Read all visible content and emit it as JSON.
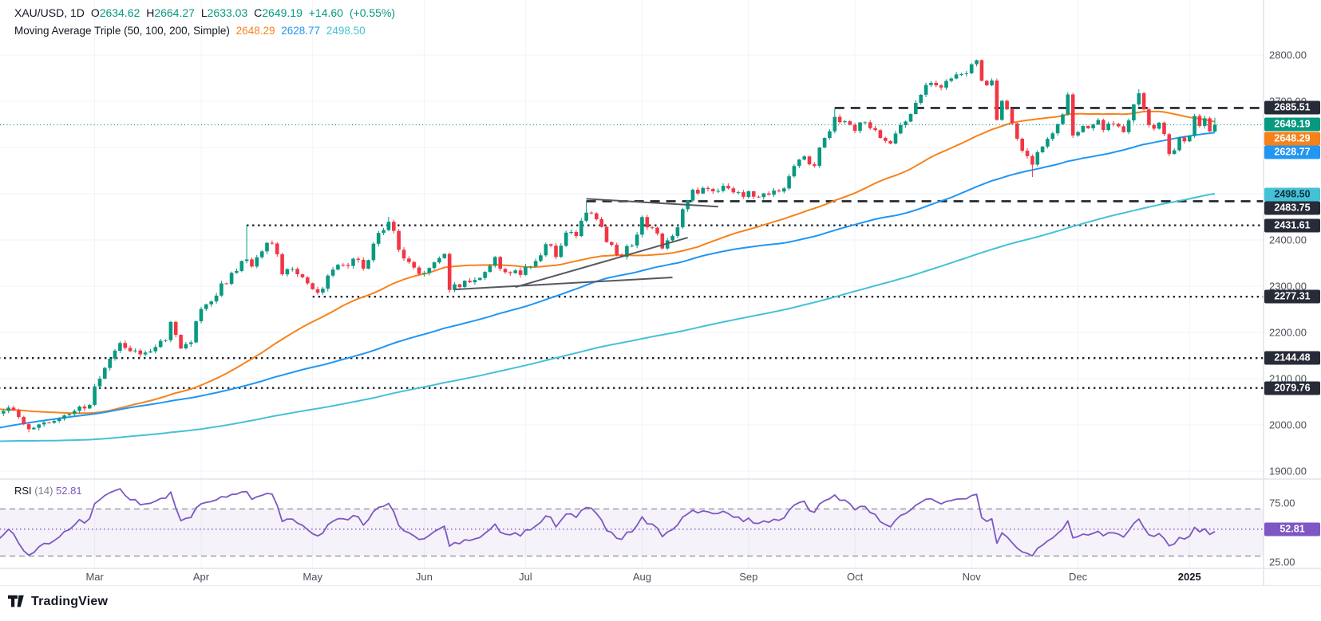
{
  "chart_data": {
    "type": "candlestick",
    "symbol": "XAU/USD",
    "interval": "1D",
    "title": "XAU/USD, 1D",
    "ohlc": {
      "open_label": "O",
      "open": "2634.62",
      "high_label": "H",
      "high": "2664.27",
      "low_label": "L",
      "low": "2633.03",
      "close_label": "C",
      "close": "2649.19",
      "change": "+14.60",
      "change_pct": "(+0.55%)"
    },
    "indicators": {
      "ma_triple": {
        "label": "Moving Average Triple (50, 100, 200, Simple)",
        "periods": [
          50,
          100,
          200
        ],
        "values": [
          "2648.29",
          "2628.77",
          "2498.50"
        ],
        "colors": [
          "#f7821b",
          "#2196f3",
          "#45c1d6"
        ]
      },
      "rsi": {
        "label": "RSI",
        "params": "(14)",
        "value": "52.81",
        "numeric_value": 52.81,
        "band": [
          30,
          70
        ],
        "color": "#7e57c2"
      }
    },
    "y_axis": {
      "price_ticks": [
        {
          "label": "2800.00",
          "value": 2800
        },
        {
          "label": "2700.00",
          "value": 2700
        },
        {
          "label": "2400.00",
          "value": 2400
        },
        {
          "label": "2300.00",
          "value": 2300
        },
        {
          "label": "2200.00",
          "value": 2200
        },
        {
          "label": "2100.00",
          "value": 2100
        },
        {
          "label": "2000.00",
          "value": 2000
        },
        {
          "label": "1900.00",
          "value": 1900
        }
      ],
      "rsi_ticks": [
        {
          "label": "75.00",
          "value": 75
        },
        {
          "label": "25.00",
          "value": 25
        }
      ],
      "price_range_visible": [
        1875,
        2905
      ],
      "rsi_range_visible": [
        25,
        75
      ]
    },
    "x_axis": {
      "months": [
        {
          "label": "Mar",
          "day": 19
        },
        {
          "label": "Apr",
          "day": 40
        },
        {
          "label": "May",
          "day": 62
        },
        {
          "label": "Jun",
          "day": 84
        },
        {
          "label": "Jul",
          "day": 104
        },
        {
          "label": "Aug",
          "day": 127
        },
        {
          "label": "Sep",
          "day": 148
        },
        {
          "label": "Oct",
          "day": 169
        },
        {
          "label": "Nov",
          "day": 192
        },
        {
          "label": "Dec",
          "day": 213
        },
        {
          "label": "2025",
          "day": 235,
          "bold": true
        }
      ],
      "grid": true
    },
    "levels": [
      {
        "label": "2685.51",
        "value": 2685.51,
        "style": "dashed",
        "from_day": 165,
        "badge": "dark"
      },
      {
        "label": "2483.75",
        "value": 2483.75,
        "style": "dashed",
        "from_day": 116,
        "badge": "dark"
      },
      {
        "label": "2431.61",
        "value": 2431.61,
        "style": "dotted",
        "from_day": 49,
        "badge": "dark"
      },
      {
        "label": "2277.31",
        "value": 2277.31,
        "style": "dotted",
        "from_day": 62,
        "badge": "dark"
      },
      {
        "label": "2144.48",
        "value": 2144.48,
        "style": "dotted",
        "from_day": 0,
        "badge": "dark"
      },
      {
        "label": "2079.76",
        "value": 2079.76,
        "style": "dotted",
        "from_day": 0,
        "badge": "dark"
      }
    ],
    "current_price_line": {
      "value": 2649.19,
      "label": "2649.19",
      "color": "#089981",
      "style": "dotted"
    },
    "trendlines": [
      {
        "points": [
          [
            102,
            2298
          ],
          [
            136,
            2405
          ]
        ]
      },
      {
        "points": [
          [
            90,
            2293
          ],
          [
            133,
            2319
          ]
        ]
      },
      {
        "points": [
          [
            116,
            2489
          ],
          [
            142,
            2472
          ]
        ]
      }
    ],
    "price_waypoints": [
      [
        0,
        2025
      ],
      [
        3,
        2033
      ],
      [
        6,
        1992
      ],
      [
        10,
        2006
      ],
      [
        14,
        2023
      ],
      [
        18,
        2043
      ],
      [
        19,
        2082
      ],
      [
        23,
        2160
      ],
      [
        24,
        2178
      ],
      [
        26,
        2158
      ],
      [
        30,
        2160
      ],
      [
        33,
        2183
      ],
      [
        34,
        2222
      ],
      [
        36,
        2166
      ],
      [
        38,
        2180
      ],
      [
        40,
        2250
      ],
      [
        43,
        2281
      ],
      [
        46,
        2330
      ],
      [
        48,
        2354
      ],
      [
        50,
        2344
      ],
      [
        52,
        2376
      ],
      [
        54,
        2392
      ],
      [
        56,
        2327
      ],
      [
        58,
        2338
      ],
      [
        60,
        2320
      ],
      [
        63,
        2286
      ],
      [
        65,
        2322
      ],
      [
        68,
        2346
      ],
      [
        70,
        2360
      ],
      [
        72,
        2338
      ],
      [
        75,
        2415
      ],
      [
        77,
        2438
      ],
      [
        78,
        2421
      ],
      [
        79,
        2378
      ],
      [
        81,
        2352
      ],
      [
        84,
        2327
      ],
      [
        86,
        2350
      ],
      [
        88,
        2371
      ],
      [
        89,
        2293
      ],
      [
        92,
        2311
      ],
      [
        95,
        2319
      ],
      [
        98,
        2362
      ],
      [
        100,
        2331
      ],
      [
        103,
        2326
      ],
      [
        106,
        2356
      ],
      [
        108,
        2392
      ],
      [
        110,
        2364
      ],
      [
        112,
        2415
      ],
      [
        114,
        2408
      ],
      [
        116,
        2459
      ],
      [
        118,
        2445
      ],
      [
        120,
        2396
      ],
      [
        123,
        2365
      ],
      [
        126,
        2410
      ],
      [
        127,
        2448
      ],
      [
        129,
        2426
      ],
      [
        131,
        2382
      ],
      [
        133,
        2410
      ],
      [
        135,
        2465
      ],
      [
        137,
        2508
      ],
      [
        140,
        2510
      ],
      [
        143,
        2516
      ],
      [
        146,
        2503
      ],
      [
        149,
        2493
      ],
      [
        152,
        2497
      ],
      [
        155,
        2512
      ],
      [
        157,
        2560
      ],
      [
        159,
        2582
      ],
      [
        161,
        2559
      ],
      [
        163,
        2622
      ],
      [
        165,
        2666
      ],
      [
        167,
        2657
      ],
      [
        169,
        2635
      ],
      [
        171,
        2654
      ],
      [
        174,
        2622
      ],
      [
        176,
        2608
      ],
      [
        178,
        2648
      ],
      [
        180,
        2673
      ],
      [
        182,
        2715
      ],
      [
        184,
        2740
      ],
      [
        186,
        2730
      ],
      [
        188,
        2748
      ],
      [
        190,
        2760
      ],
      [
        192,
        2780
      ],
      [
        193,
        2788
      ],
      [
        194,
        2744
      ],
      [
        195,
        2736
      ],
      [
        196,
        2746
      ],
      [
        197,
        2660
      ],
      [
        198,
        2700
      ],
      [
        199,
        2684
      ],
      [
        201,
        2618
      ],
      [
        203,
        2580
      ],
      [
        204,
        2563
      ],
      [
        205,
        2589
      ],
      [
        207,
        2620
      ],
      [
        209,
        2650
      ],
      [
        210,
        2670
      ],
      [
        211,
        2716
      ],
      [
        212,
        2626
      ],
      [
        213,
        2633
      ],
      [
        215,
        2643
      ],
      [
        217,
        2660
      ],
      [
        218,
        2639
      ],
      [
        220,
        2650
      ],
      [
        222,
        2633
      ],
      [
        223,
        2660
      ],
      [
        224,
        2694
      ],
      [
        225,
        2718
      ],
      [
        226,
        2681
      ],
      [
        227,
        2648
      ],
      [
        229,
        2653
      ],
      [
        231,
        2585
      ],
      [
        232,
        2594
      ],
      [
        233,
        2623
      ],
      [
        234,
        2613
      ],
      [
        235,
        2625
      ],
      [
        236,
        2669
      ],
      [
        237,
        2647
      ],
      [
        238,
        2662
      ],
      [
        239,
        2634.62
      ],
      [
        240,
        2649.19
      ]
    ],
    "prehistory_waypoints": [
      [
        -200,
        1990
      ],
      [
        -185,
        1972
      ],
      [
        -170,
        1958
      ],
      [
        -155,
        1945
      ],
      [
        -140,
        1938
      ],
      [
        -125,
        1916
      ],
      [
        -110,
        1880
      ],
      [
        -100,
        1848
      ],
      [
        -95,
        1825
      ],
      [
        -88,
        1860
      ],
      [
        -80,
        1935
      ],
      [
        -72,
        1984
      ],
      [
        -65,
        2005
      ],
      [
        -58,
        2040
      ],
      [
        -52,
        2072
      ],
      [
        -46,
        2045
      ],
      [
        -40,
        2032
      ],
      [
        -32,
        2042
      ],
      [
        -25,
        2030
      ],
      [
        -18,
        2022
      ],
      [
        -10,
        2032
      ],
      [
        -5,
        2027
      ],
      [
        -1,
        2026
      ]
    ],
    "wick_overrides": [
      {
        "day": 6,
        "low": 1984
      },
      {
        "day": 49,
        "high": 2431.6
      },
      {
        "day": 77,
        "high": 2450
      },
      {
        "day": 116,
        "high": 2483.8
      },
      {
        "day": 165,
        "high": 2685.5
      },
      {
        "day": 193,
        "high": 2790
      },
      {
        "day": 204,
        "low": 2536
      },
      {
        "day": 225,
        "high": 2726
      }
    ],
    "last_candle": {
      "day": 240,
      "open": 2634.62,
      "high": 2664.27,
      "low": 2633.03,
      "close": 2649.19
    },
    "colors": {
      "up": "#089981",
      "down": "#f23645",
      "ma50": "#f7821b",
      "ma100": "#2196f3",
      "ma200": "#45c1d6",
      "level_line": "#1e222d",
      "dark_badge": "#272b38",
      "grid": "#f0f3fa",
      "separator": "#e0e3eb",
      "rsi": "#7e57c2",
      "trendline": "#55585f",
      "close_badge": "#089981"
    }
  },
  "footer": {
    "brand": "TradingView"
  }
}
